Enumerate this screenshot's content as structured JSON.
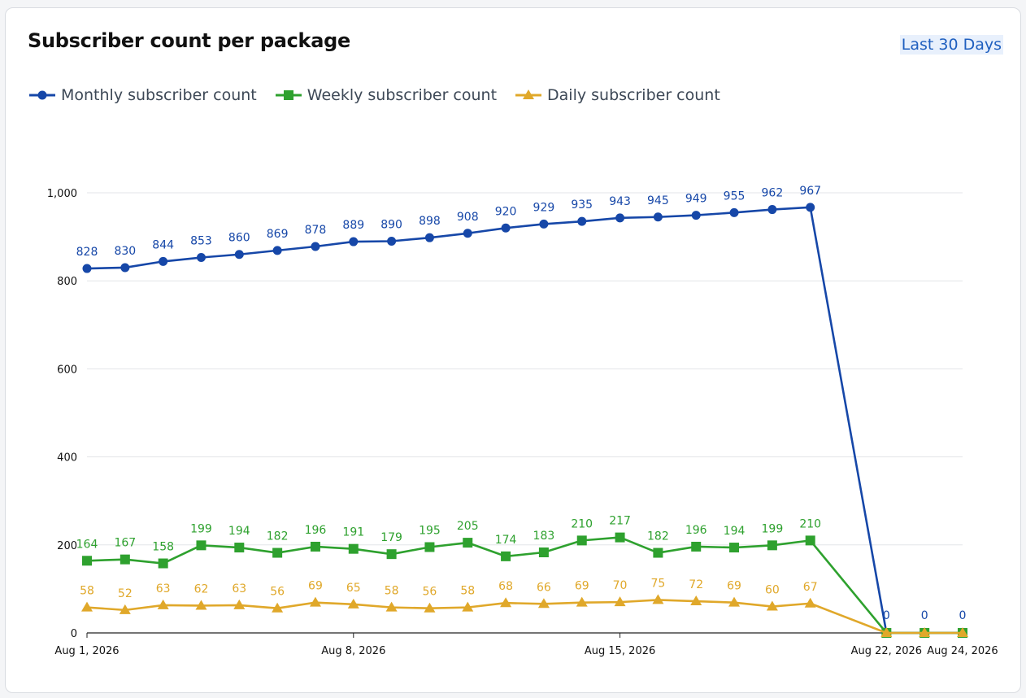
{
  "header": {
    "title": "Subscriber count per package",
    "range_button": "Last 30 Days"
  },
  "colors": {
    "monthly": "#1647a8",
    "weekly": "#2ea12e",
    "daily": "#e0a82a",
    "grid": "#e3e5e8",
    "axis": "#222222"
  },
  "chart_data": {
    "type": "line",
    "x": [
      "Aug 1, 2026",
      "Aug 2, 2026",
      "Aug 3, 2026",
      "Aug 4, 2026",
      "Aug 5, 2026",
      "Aug 6, 2026",
      "Aug 7, 2026",
      "Aug 8, 2026",
      "Aug 9, 2026",
      "Aug 10, 2026",
      "Aug 11, 2026",
      "Aug 12, 2026",
      "Aug 13, 2026",
      "Aug 14, 2026",
      "Aug 15, 2026",
      "Aug 16, 2026",
      "Aug 17, 2026",
      "Aug 18, 2026",
      "Aug 19, 2026",
      "Aug 20, 2026",
      "Aug 22, 2026",
      "Aug 23, 2026",
      "Aug 24, 2026"
    ],
    "series": [
      {
        "name": "Monthly subscriber count",
        "marker": "circle",
        "color": "#1647a8",
        "values": [
          828,
          830,
          844,
          853,
          860,
          869,
          878,
          889,
          890,
          898,
          908,
          920,
          929,
          935,
          943,
          945,
          949,
          955,
          962,
          967,
          0,
          0,
          0
        ]
      },
      {
        "name": "Weekly subscriber count",
        "marker": "square",
        "color": "#2ea12e",
        "values": [
          164,
          167,
          158,
          199,
          194,
          182,
          196,
          191,
          179,
          195,
          205,
          174,
          183,
          210,
          217,
          182,
          196,
          194,
          199,
          210,
          0,
          0,
          0
        ]
      },
      {
        "name": "Daily subscriber count",
        "marker": "triangle",
        "color": "#e0a82a",
        "values": [
          58,
          52,
          63,
          62,
          63,
          56,
          69,
          65,
          58,
          56,
          58,
          68,
          66,
          69,
          70,
          75,
          72,
          69,
          60,
          67,
          0,
          0,
          0
        ]
      }
    ],
    "x_tick_labels": [
      "Aug 1, 2026",
      "Aug 8, 2026",
      "Aug 15, 2026",
      "Aug 22, 2026",
      "Aug 24, 2026"
    ],
    "y_ticks": [
      0,
      200,
      400,
      600,
      800,
      1000
    ],
    "y_tick_labels": [
      "0",
      "200",
      "400",
      "600",
      "800",
      "1,000"
    ],
    "ylim": [
      0,
      1000
    ],
    "grid": true,
    "legend_position": "top-left",
    "data_labels": true,
    "zero_labels_shown_for": "Monthly subscriber count"
  }
}
